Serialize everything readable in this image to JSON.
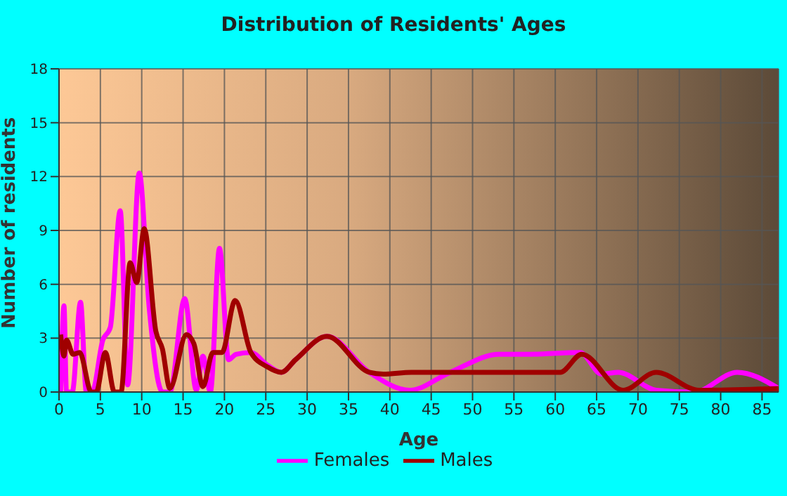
{
  "chart_data": {
    "type": "line",
    "title": "Distribution of Residents' Ages",
    "xlabel": "Age",
    "ylabel": "Number of residents",
    "xlim": [
      0,
      87
    ],
    "xticks": [
      0,
      5,
      10,
      15,
      20,
      25,
      30,
      35,
      40,
      45,
      50,
      55,
      60,
      65,
      70,
      75,
      80,
      85
    ],
    "ylim": [
      0,
      18
    ],
    "yticks": [
      0,
      3,
      6,
      9,
      12,
      15,
      18
    ],
    "grid": true,
    "legend": "bottom",
    "marker": "none",
    "line_style": "solid",
    "series": [
      {
        "name": "Males",
        "color": "#a00000",
        "x": [
          0.2,
          0.6,
          0.9,
          1.7,
          2.5,
          3.9,
          4.5,
          5.6,
          6.7,
          7.5,
          8.6,
          9.4,
          10.3,
          11.7,
          12.5,
          13.4,
          15.4,
          16.3,
          17.4,
          18.6,
          19.7,
          21.3,
          23.2,
          25.2,
          26.9,
          28.6,
          32.4,
          37.5,
          39.2,
          42.6,
          56.6,
          60.6,
          63.2,
          68.2,
          72.2,
          77.4,
          87
        ],
        "values": [
          3.2,
          2,
          2.9,
          2.1,
          2.2,
          0,
          0,
          2.2,
          0,
          0,
          7.2,
          6.1,
          9.1,
          3.4,
          2.4,
          0.2,
          3.2,
          2.7,
          0.3,
          2.2,
          2.2,
          5.1,
          2.2,
          1.4,
          1.1,
          1.8,
          3.1,
          1.1,
          1,
          1.1,
          1.1,
          1.1,
          2.1,
          0.1,
          1.1,
          0.1,
          0.2
        ]
      },
      {
        "name": "Females",
        "color": "#ff00ff",
        "x": [
          0.2,
          0.6,
          0.9,
          1.6,
          2.6,
          3.3,
          4,
          5.3,
          6.2,
          7.4,
          8.3,
          9.7,
          10.9,
          12.5,
          13.4,
          15.2,
          16.6,
          17.4,
          18.3,
          19.4,
          20.5,
          21.4,
          23.2,
          25.2,
          26.9,
          28.6,
          32.4,
          37.5,
          42.4,
          47.3,
          53.2,
          56.6,
          63,
          65.6,
          67.6,
          72.2,
          76.8,
          82,
          87
        ],
        "values": [
          0,
          4.8,
          0,
          0,
          5,
          0,
          0,
          2.9,
          3.6,
          10.1,
          0.4,
          12.2,
          4.7,
          0,
          0,
          5.2,
          0.1,
          2,
          0,
          8,
          1.8,
          2.1,
          2.2,
          1.5,
          1.1,
          1.8,
          3.1,
          1.1,
          0.1,
          1.1,
          2.1,
          2.1,
          2.2,
          1,
          1.1,
          0.1,
          0,
          1.1,
          0.2
        ]
      }
    ]
  }
}
